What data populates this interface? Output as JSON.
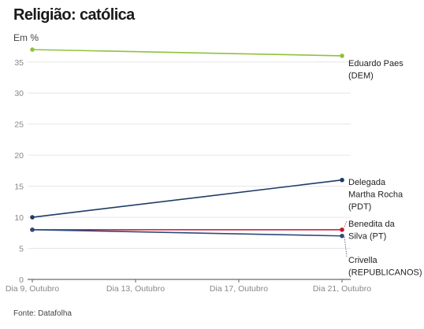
{
  "title": "Religião: católica",
  "subtitle": "Em %",
  "source": "Fonte: Datafolha",
  "chart_data": {
    "type": "line",
    "title": "Religião: católica",
    "ylabel": "Em %",
    "x": [
      "Dia 9, Outubro",
      "Dia 21, Outubro"
    ],
    "x_ticks": [
      "Dia 9, Outubro",
      "Dia 13, Outubro",
      "Dia 17, Outubro",
      "Dia 21, Outubro"
    ],
    "y_ticks": [
      0,
      5,
      10,
      15,
      20,
      25,
      30,
      35
    ],
    "ylim": [
      0,
      37
    ],
    "grid": true,
    "series": [
      {
        "name": "Eduardo Paes (DEM)",
        "label_lines": [
          "Eduardo Paes",
          "(DEM)"
        ],
        "values": [
          37,
          36
        ],
        "color": "#8fc23c"
      },
      {
        "name": "Delegada Martha Rocha (PDT)",
        "label_lines": [
          "Delegada",
          "Martha Rocha",
          "(PDT)"
        ],
        "values": [
          10,
          16
        ],
        "color": "#1f3b66"
      },
      {
        "name": "Benedita da Silva (PT)",
        "label_lines": [
          "Benedita da",
          "Silva (PT)"
        ],
        "values": [
          8,
          8
        ],
        "color": "#c8102e"
      },
      {
        "name": "Crivella (REPUBLICANOS)",
        "label_lines": [
          "Crivella",
          "(REPUBLICANOS)"
        ],
        "values": [
          8,
          7
        ],
        "color": "#2c4a7a"
      }
    ]
  }
}
